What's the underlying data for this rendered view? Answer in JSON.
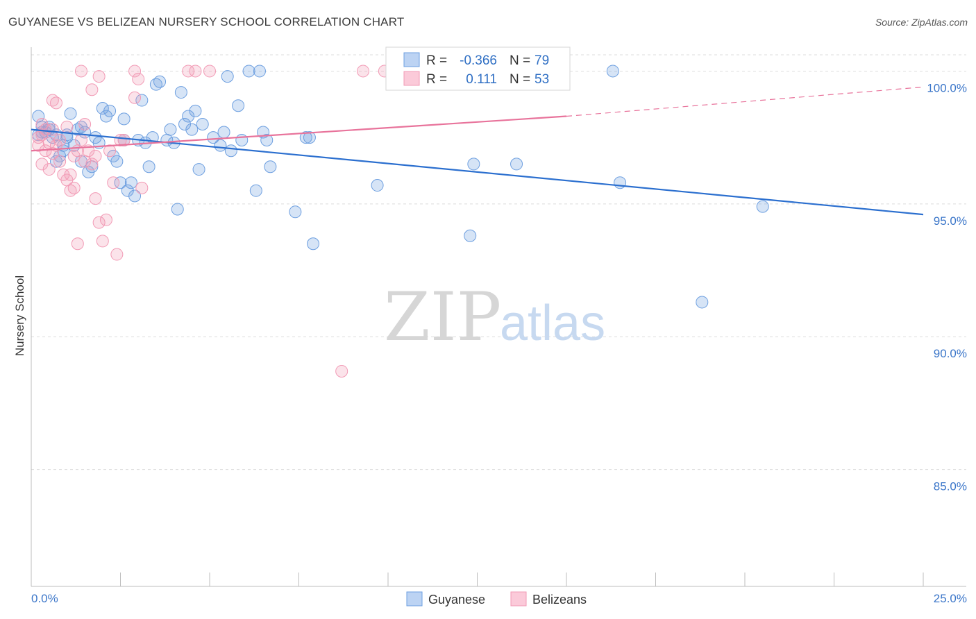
{
  "chart_data": {
    "type": "scatter",
    "title": "GUYANESE VS BELIZEAN NURSERY SCHOOL CORRELATION CHART",
    "source": "Source: ZipAtlas.com",
    "xlabel": "",
    "ylabel": "Nursery School",
    "xlim": [
      0,
      25
    ],
    "ylim": [
      80.6,
      100.9
    ],
    "x_tick_labels": [
      "0.0%",
      "25.0%"
    ],
    "y_ticks": [
      85,
      90,
      95,
      100
    ],
    "y_tick_labels": [
      "85.0%",
      "90.0%",
      "95.0%",
      "100.0%"
    ],
    "watermark": {
      "zip": "ZIP",
      "atlas": "atlas"
    },
    "colors": {
      "guyanese": "#6d9fe0",
      "belizeans": "#f29ab5",
      "blue_line": "#2b6fcf",
      "pink_line": "#e8739b",
      "accent_text": "#3b76c9"
    },
    "legend": {
      "r_label": "R =",
      "n_label": "N =",
      "rows": [
        {
          "name": "Guyanese",
          "r": "-0.366",
          "n": "79"
        },
        {
          "name": "Belizeans",
          "r": "0.111",
          "n": "53"
        }
      ]
    },
    "series": [
      {
        "name": "Guyanese",
        "trend": {
          "x0": 0,
          "y0": 97.8,
          "x1": 25,
          "y1": 94.6
        },
        "points": [
          [
            0.2,
            98.3
          ],
          [
            0.3,
            97.9
          ],
          [
            0.4,
            97.7
          ],
          [
            0.2,
            97.6
          ],
          [
            0.5,
            97.8
          ],
          [
            0.6,
            97.5
          ],
          [
            0.7,
            96.6
          ],
          [
            0.8,
            96.8
          ],
          [
            0.9,
            97.2
          ],
          [
            1.0,
            97.6
          ],
          [
            1.1,
            98.4
          ],
          [
            1.2,
            97.2
          ],
          [
            1.3,
            97.8
          ],
          [
            1.4,
            96.6
          ],
          [
            1.5,
            97.7
          ],
          [
            1.6,
            96.2
          ],
          [
            1.7,
            96.4
          ],
          [
            1.9,
            97.3
          ],
          [
            2.0,
            98.6
          ],
          [
            2.1,
            98.3
          ],
          [
            2.2,
            98.5
          ],
          [
            2.3,
            96.8
          ],
          [
            2.5,
            95.8
          ],
          [
            2.6,
            98.2
          ],
          [
            2.7,
            95.5
          ],
          [
            2.8,
            95.8
          ],
          [
            2.9,
            95.3
          ],
          [
            3.0,
            97.4
          ],
          [
            3.1,
            98.9
          ],
          [
            3.2,
            97.3
          ],
          [
            3.3,
            96.4
          ],
          [
            3.5,
            99.5
          ],
          [
            3.6,
            99.6
          ],
          [
            3.8,
            97.4
          ],
          [
            3.9,
            97.8
          ],
          [
            4.0,
            97.3
          ],
          [
            4.1,
            94.8
          ],
          [
            4.2,
            99.2
          ],
          [
            4.3,
            98.0
          ],
          [
            4.4,
            98.3
          ],
          [
            4.5,
            97.8
          ],
          [
            4.6,
            98.5
          ],
          [
            4.7,
            96.3
          ],
          [
            4.8,
            98.0
          ],
          [
            5.1,
            97.5
          ],
          [
            5.3,
            97.2
          ],
          [
            5.4,
            97.7
          ],
          [
            5.5,
            99.8
          ],
          [
            5.6,
            97.0
          ],
          [
            5.8,
            98.7
          ],
          [
            5.9,
            97.4
          ],
          [
            6.1,
            100.0
          ],
          [
            6.3,
            95.5
          ],
          [
            6.4,
            100.0
          ],
          [
            6.5,
            97.7
          ],
          [
            6.6,
            97.4
          ],
          [
            6.7,
            96.4
          ],
          [
            7.4,
            94.7
          ],
          [
            7.7,
            97.5
          ],
          [
            7.8,
            97.5
          ],
          [
            7.9,
            93.5
          ],
          [
            9.7,
            95.7
          ],
          [
            12.3,
            93.8
          ],
          [
            12.4,
            96.5
          ],
          [
            13.6,
            96.5
          ],
          [
            16.5,
            95.8
          ],
          [
            16.3,
            100.0
          ],
          [
            18.8,
            91.3
          ],
          [
            20.5,
            94.9
          ],
          [
            0.3,
            97.7
          ],
          [
            0.5,
            97.9
          ],
          [
            1.4,
            97.9
          ],
          [
            0.9,
            97.0
          ],
          [
            1.8,
            97.5
          ],
          [
            2.4,
            96.6
          ],
          [
            1.0,
            97.5
          ],
          [
            0.7,
            97.6
          ],
          [
            3.4,
            97.5
          ],
          [
            2.6,
            97.4
          ]
        ]
      },
      {
        "name": "Belizeans",
        "trend": {
          "x0": 0,
          "y0": 97.0,
          "x1": 15,
          "y1": 98.3,
          "dash_x1": 25,
          "dash_y1": 99.4
        },
        "points": [
          [
            0.2,
            97.2
          ],
          [
            0.3,
            97.6
          ],
          [
            0.4,
            97.0
          ],
          [
            0.5,
            96.3
          ],
          [
            0.6,
            96.9
          ],
          [
            0.7,
            97.2
          ],
          [
            0.8,
            96.6
          ],
          [
            0.9,
            96.1
          ],
          [
            1.0,
            95.9
          ],
          [
            1.1,
            95.5
          ],
          [
            1.2,
            95.6
          ],
          [
            1.3,
            97.0
          ],
          [
            1.4,
            97.4
          ],
          [
            1.5,
            96.6
          ],
          [
            1.6,
            97.0
          ],
          [
            1.7,
            96.5
          ],
          [
            1.8,
            95.2
          ],
          [
            1.9,
            94.3
          ],
          [
            2.0,
            93.6
          ],
          [
            2.1,
            94.4
          ],
          [
            2.2,
            97.0
          ],
          [
            2.4,
            93.1
          ],
          [
            2.5,
            97.4
          ],
          [
            2.6,
            97.4
          ],
          [
            2.9,
            99.0
          ],
          [
            3.0,
            99.7
          ],
          [
            3.1,
            95.6
          ],
          [
            0.6,
            98.9
          ],
          [
            0.7,
            98.8
          ],
          [
            1.4,
            100.0
          ],
          [
            1.7,
            99.3
          ],
          [
            1.9,
            99.8
          ],
          [
            2.9,
            100.0
          ],
          [
            4.4,
            100.0
          ],
          [
            4.6,
            100.0
          ],
          [
            5.0,
            100.0
          ],
          [
            9.3,
            100.0
          ],
          [
            9.9,
            100.0
          ],
          [
            8.7,
            88.7
          ],
          [
            0.3,
            98.0
          ],
          [
            0.2,
            97.5
          ],
          [
            0.4,
            97.8
          ],
          [
            0.8,
            97.4
          ],
          [
            1.0,
            97.9
          ],
          [
            1.2,
            96.8
          ],
          [
            1.5,
            98.0
          ],
          [
            0.3,
            96.5
          ],
          [
            0.6,
            97.8
          ],
          [
            1.1,
            96.1
          ],
          [
            1.8,
            96.8
          ],
          [
            1.3,
            93.5
          ],
          [
            2.3,
            95.8
          ],
          [
            0.5,
            97.3
          ]
        ]
      }
    ]
  }
}
